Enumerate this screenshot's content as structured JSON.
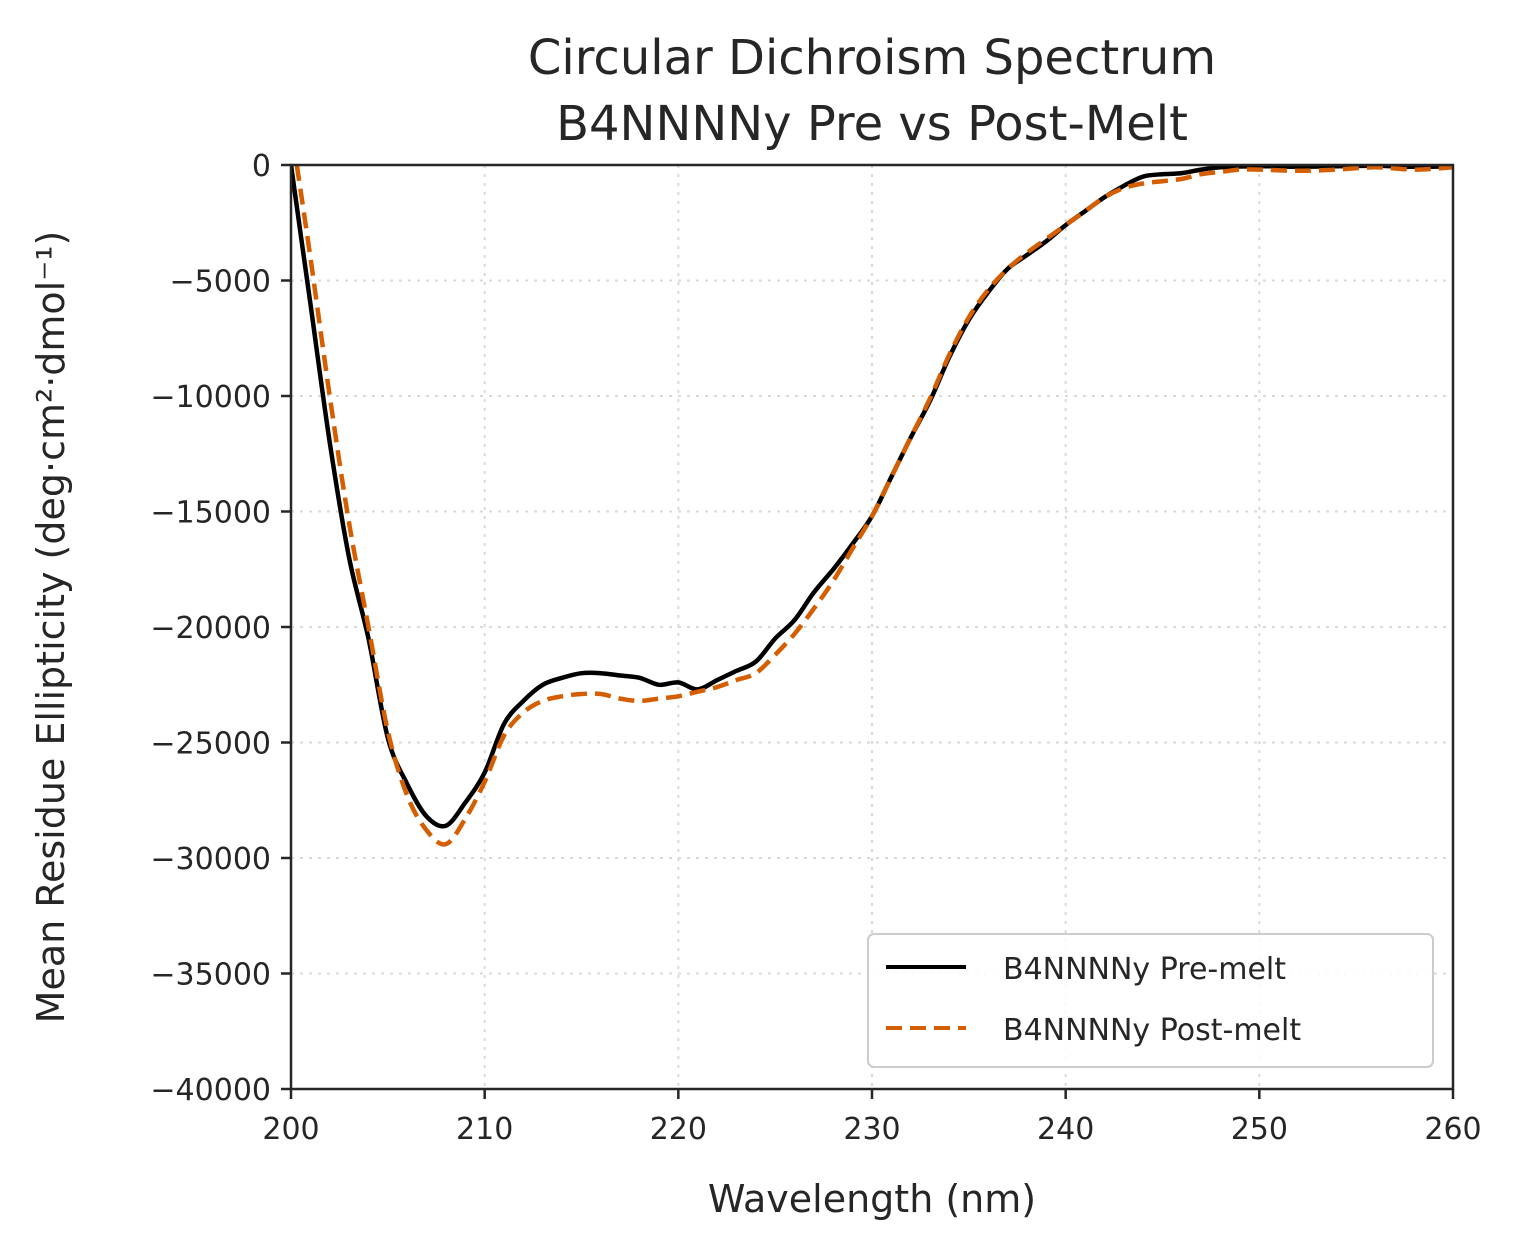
{
  "chart_data": {
    "type": "line",
    "title_line1": "Circular Dichroism Spectrum",
    "title_line2": "B4NNNNy Pre vs Post-Melt",
    "xlabel": "Wavelength (nm)",
    "ylabel": "Mean Residue Ellipticity (deg·cm²·dmol⁻¹)",
    "xlim": [
      200,
      260
    ],
    "ylim": [
      -40000,
      0
    ],
    "xticks": [
      200,
      210,
      220,
      230,
      240,
      250,
      260
    ],
    "yticks": [
      0,
      -5000,
      -10000,
      -15000,
      -20000,
      -25000,
      -30000,
      -35000,
      -40000
    ],
    "grid": true,
    "legend_position": "bottom-right",
    "series": [
      {
        "name": "B4NNNNy Pre-melt",
        "color": "#000000",
        "style": "solid",
        "points": [
          [
            200,
            0
          ],
          [
            201,
            -6000
          ],
          [
            202,
            -12000
          ],
          [
            203,
            -17000
          ],
          [
            204,
            -20500
          ],
          [
            205,
            -24800
          ],
          [
            206,
            -26800
          ],
          [
            207,
            -28200
          ],
          [
            208,
            -28600
          ],
          [
            209,
            -27600
          ],
          [
            210,
            -26300
          ],
          [
            211,
            -24200
          ],
          [
            212,
            -23200
          ],
          [
            213,
            -22500
          ],
          [
            214,
            -22200
          ],
          [
            215,
            -22000
          ],
          [
            216,
            -22000
          ],
          [
            217,
            -22100
          ],
          [
            218,
            -22200
          ],
          [
            219,
            -22500
          ],
          [
            220,
            -22400
          ],
          [
            221,
            -22700
          ],
          [
            222,
            -22300
          ],
          [
            223,
            -21900
          ],
          [
            224,
            -21500
          ],
          [
            225,
            -20500
          ],
          [
            226,
            -19700
          ],
          [
            227,
            -18500
          ],
          [
            228,
            -17500
          ],
          [
            229,
            -16400
          ],
          [
            230,
            -15200
          ],
          [
            231,
            -13500
          ],
          [
            232,
            -11800
          ],
          [
            233,
            -10200
          ],
          [
            234,
            -8300
          ],
          [
            235,
            -6700
          ],
          [
            236,
            -5500
          ],
          [
            237,
            -4500
          ],
          [
            238,
            -3900
          ],
          [
            239,
            -3300
          ],
          [
            240,
            -2600
          ],
          [
            241,
            -2000
          ],
          [
            242,
            -1400
          ],
          [
            243,
            -900
          ],
          [
            244,
            -500
          ],
          [
            245,
            -400
          ],
          [
            246,
            -350
          ],
          [
            247,
            -200
          ],
          [
            248,
            -100
          ],
          [
            250,
            -50
          ],
          [
            252,
            -80
          ],
          [
            254,
            -50
          ],
          [
            256,
            -30
          ],
          [
            258,
            -80
          ],
          [
            260,
            -50
          ]
        ]
      },
      {
        "name": "B4NNNNy Post-melt",
        "color": "#d55e00",
        "style": "dashed",
        "points": [
          [
            200.3,
            0
          ],
          [
            201,
            -4000
          ],
          [
            202,
            -10000
          ],
          [
            203,
            -15500
          ],
          [
            204,
            -20000
          ],
          [
            205,
            -24500
          ],
          [
            206,
            -27300
          ],
          [
            207,
            -28800
          ],
          [
            208,
            -29400
          ],
          [
            209,
            -28300
          ],
          [
            210,
            -26700
          ],
          [
            211,
            -24700
          ],
          [
            212,
            -23700
          ],
          [
            213,
            -23200
          ],
          [
            214,
            -23000
          ],
          [
            215,
            -22900
          ],
          [
            216,
            -22900
          ],
          [
            217,
            -23100
          ],
          [
            218,
            -23200
          ],
          [
            219,
            -23100
          ],
          [
            220,
            -23000
          ],
          [
            221,
            -22800
          ],
          [
            222,
            -22600
          ],
          [
            223,
            -22300
          ],
          [
            224,
            -22000
          ],
          [
            225,
            -21200
          ],
          [
            226,
            -20300
          ],
          [
            227,
            -19200
          ],
          [
            228,
            -18000
          ],
          [
            229,
            -16600
          ],
          [
            230,
            -15200
          ],
          [
            231,
            -13500
          ],
          [
            232,
            -11800
          ],
          [
            233,
            -10100
          ],
          [
            234,
            -8200
          ],
          [
            235,
            -6600
          ],
          [
            236,
            -5400
          ],
          [
            237,
            -4500
          ],
          [
            238,
            -3800
          ],
          [
            239,
            -3200
          ],
          [
            240,
            -2600
          ],
          [
            241,
            -2000
          ],
          [
            242,
            -1400
          ],
          [
            243,
            -1000
          ],
          [
            244,
            -800
          ],
          [
            245,
            -700
          ],
          [
            246,
            -600
          ],
          [
            247,
            -400
          ],
          [
            248,
            -300
          ],
          [
            249,
            -200
          ],
          [
            250,
            -200
          ],
          [
            252,
            -250
          ],
          [
            254,
            -200
          ],
          [
            256,
            -100
          ],
          [
            258,
            -200
          ],
          [
            260,
            -100
          ]
        ]
      }
    ]
  }
}
